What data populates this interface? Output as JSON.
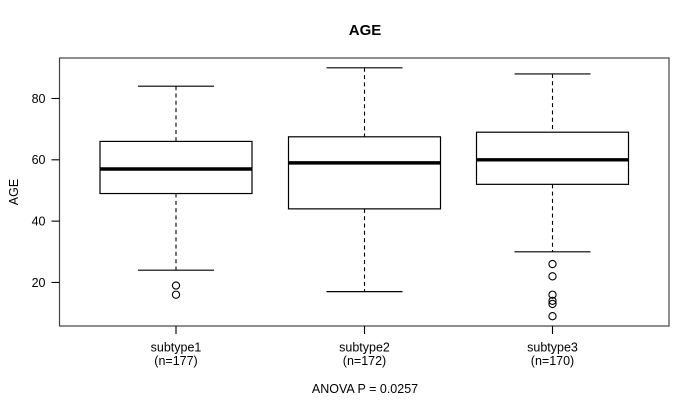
{
  "header": {
    "title": "AGE"
  },
  "y_axis": {
    "label": "AGE"
  },
  "footer": {
    "annotation": "ANOVA P = 0.0257"
  },
  "chart_data": {
    "type": "boxplot",
    "title": "AGE",
    "ylabel": "AGE",
    "xlabel": "",
    "ylim": [
      5.8,
      93.2
    ],
    "yticks": [
      20,
      40,
      60,
      80
    ],
    "grid": false,
    "legend": false,
    "annotation": "ANOVA P = 0.0257",
    "line_color": "#000000",
    "frame_color": "#444444",
    "background": "#ffffff",
    "groups": [
      {
        "label": "subtype1",
        "n_label": "(n=177)",
        "n": 177,
        "whisker_low": 24,
        "q1": 49,
        "median": 57,
        "q3": 66,
        "whisker_high": 84,
        "outliers": [
          19,
          16
        ]
      },
      {
        "label": "subtype2",
        "n_label": "(n=172)",
        "n": 172,
        "whisker_low": 17,
        "q1": 44,
        "median": 59,
        "q3": 67.5,
        "whisker_high": 90,
        "outliers": []
      },
      {
        "label": "subtype3",
        "n_label": "(n=170)",
        "n": 170,
        "whisker_low": 30,
        "q1": 52,
        "median": 60,
        "q3": 69,
        "whisker_high": 88,
        "outliers": [
          26,
          22,
          16,
          14,
          13,
          9
        ]
      }
    ]
  }
}
